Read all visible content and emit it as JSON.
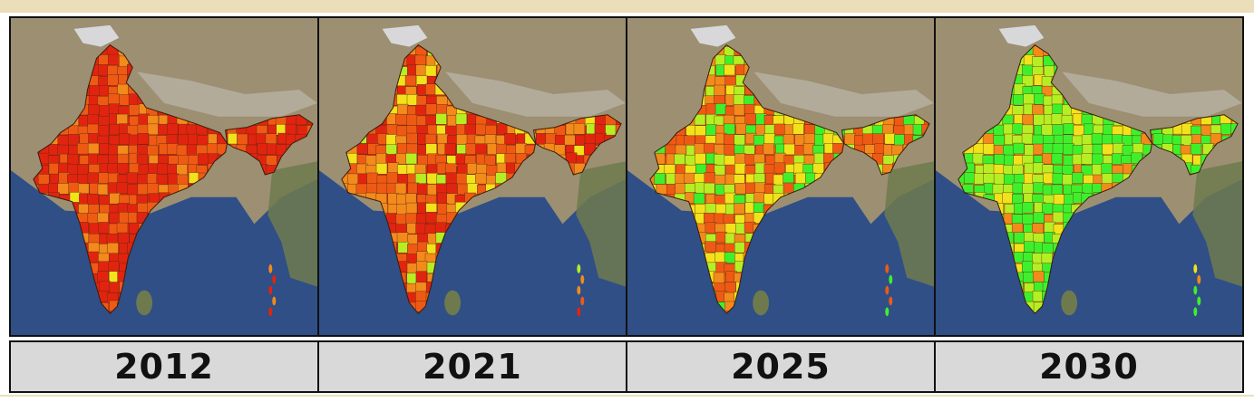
{
  "map": {
    "panels": [
      {
        "year": "2012",
        "scheme": "red"
      },
      {
        "year": "2021",
        "scheme": "orange"
      },
      {
        "year": "2025",
        "scheme": "mixed"
      },
      {
        "year": "2030",
        "scheme": "green"
      }
    ],
    "colors": {
      "ocean": "#2f4f86",
      "land_terrain": "#9c8f72",
      "mountain": "#b9b2a4",
      "snow": "#d8d8da",
      "red": "#e1240f",
      "red_orange": "#ee5a14",
      "orange": "#f28a1c",
      "yellow": "#f1e21b",
      "yellow_green": "#b6ee24",
      "green": "#3ef02c",
      "label_bg": "#d9d9d9"
    }
  }
}
